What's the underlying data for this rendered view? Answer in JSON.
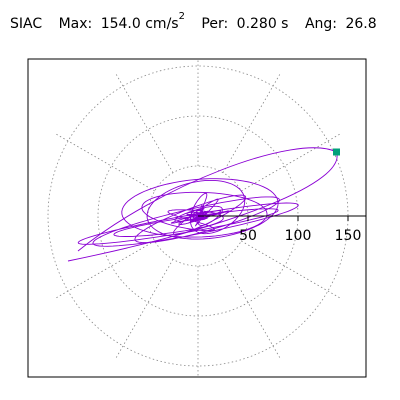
{
  "header": {
    "station": "SIAC",
    "max_label": "Max:",
    "max_value": "154.0 cm/s",
    "max_exp": "2",
    "per_label": "Per:",
    "per_value": "0.280 s",
    "ang_label": "Ang:",
    "ang_value": "26.8"
  },
  "chart_data": {
    "type": "polar-hodogram",
    "title": "SIAC  Max: 154.0 cm/s2  Per: 0.280 s  Ang: 26.8",
    "station": "SIAC",
    "max_amplitude": 154.0,
    "max_units": "cm/s2",
    "period_s": 0.28,
    "angle_deg": 26.8,
    "radial_ticks": [
      "50",
      "100",
      "150"
    ],
    "radial_tick_values": [
      50,
      100,
      150
    ],
    "rmax": 165,
    "grid": "dotted",
    "spoke_step_deg": 30,
    "trace_color": "#8a00d4",
    "marker_color": "#00a07a",
    "peak_point": [
      138.5,
      64.0
    ],
    "trace_seed": 7
  }
}
